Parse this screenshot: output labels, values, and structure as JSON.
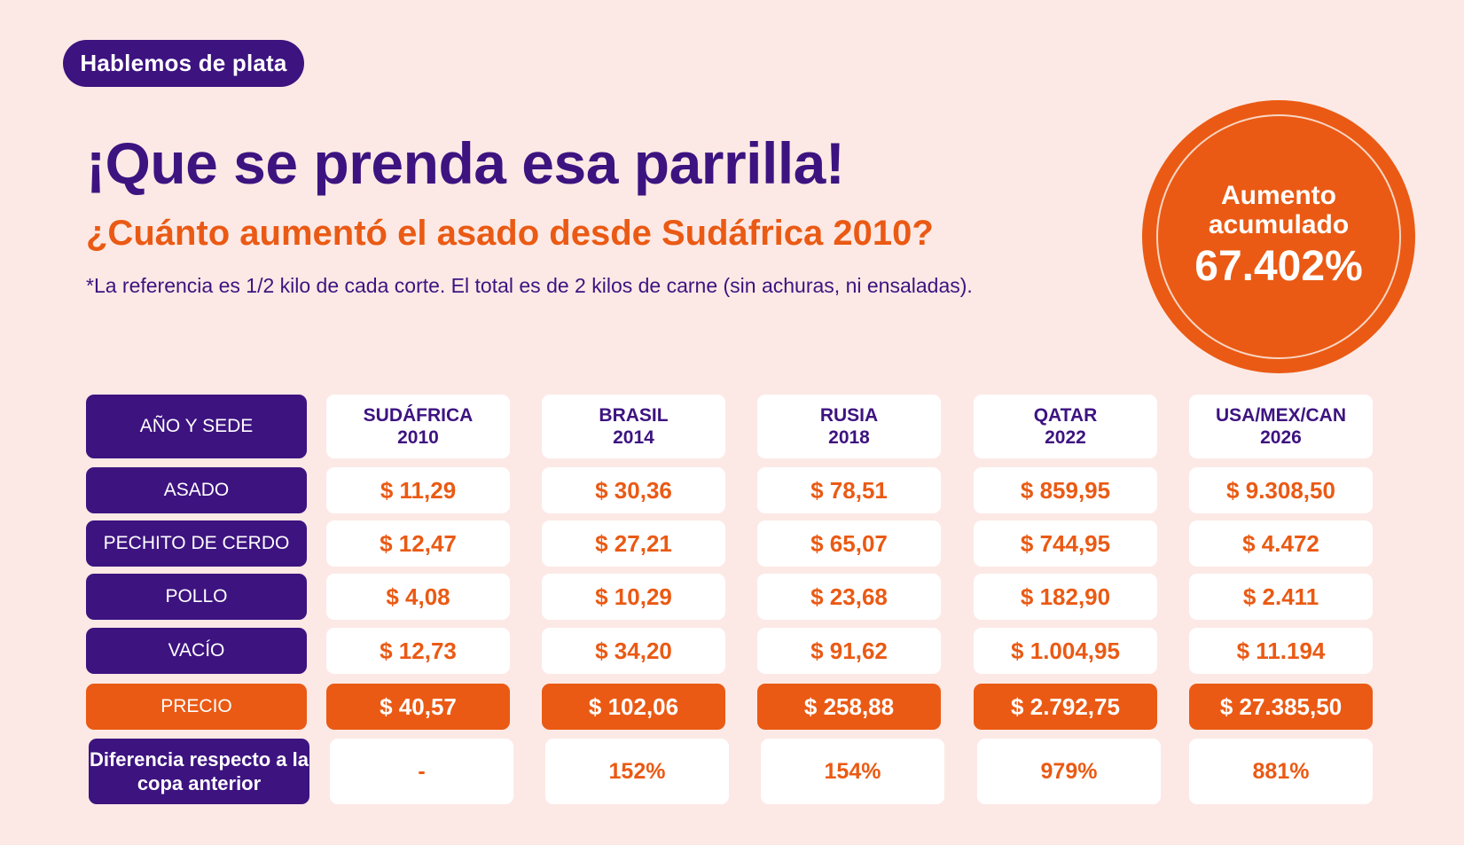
{
  "badge": "Hablemos de plata",
  "title": "¡Que se prenda esa parrilla!",
  "subtitle": "¿Cuánto aumentó el asado desde Sudáfrica 2010?",
  "note": "*La referencia es 1/2 kilo de cada corte. El total es de 2 kilos de carne (sin achuras, ni ensaladas).",
  "circle": {
    "label": "Aumento acumulado",
    "value": "67.402%"
  },
  "colors": {
    "background": "#fce9e5",
    "purple": "#3d1380",
    "orange": "#ea5a14",
    "white": "#ffffff"
  },
  "table": {
    "header_label": "AÑO Y SEDE",
    "columns": [
      "SUDÁFRICA\n2010",
      "BRASIL\n2014",
      "RUSIA\n2018",
      "QATAR\n2022",
      "USA/MEX/CAN\n2026"
    ],
    "rows": [
      {
        "label": "ASADO",
        "values": [
          "$ 11,29",
          "$ 30,36",
          "$ 78,51",
          "$ 859,95",
          "$ 9.308,50"
        ]
      },
      {
        "label": "PECHITO DE CERDO",
        "values": [
          "$ 12,47",
          "$ 27,21",
          "$ 65,07",
          "$ 744,95",
          "$ 4.472"
        ]
      },
      {
        "label": "POLLO",
        "values": [
          "$ 4,08",
          "$ 10,29",
          "$ 23,68",
          "$ 182,90",
          "$ 2.411"
        ]
      },
      {
        "label": "VACÍO",
        "values": [
          "$ 12,73",
          "$ 34,20",
          "$ 91,62",
          "$ 1.004,95",
          "$ 11.194"
        ]
      }
    ],
    "total": {
      "label": "PRECIO",
      "values": [
        "$ 40,57",
        "$ 102,06",
        "$ 258,88",
        "$ 2.792,75",
        "$ 27.385,50"
      ]
    },
    "difference": {
      "label": "Diferencia respecto a la copa anterior",
      "values": [
        "-",
        "152%",
        "154%",
        "979%",
        "881%"
      ]
    }
  }
}
